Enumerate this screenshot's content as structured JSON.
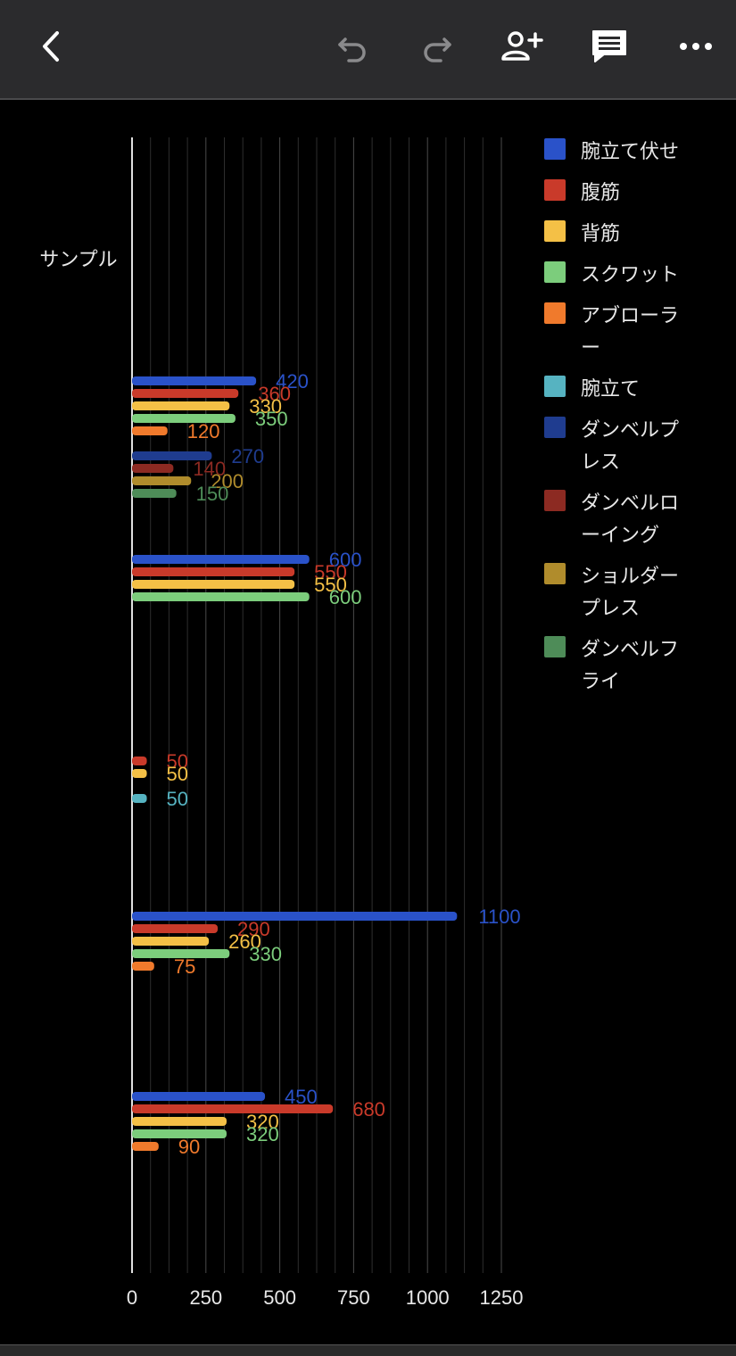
{
  "toolbar": {
    "icons": [
      "back-icon",
      "undo-icon",
      "redo-icon",
      "add-person-icon",
      "comment-icon",
      "more-icon"
    ]
  },
  "chart_data": {
    "type": "bar",
    "orientation": "horizontal",
    "category_label": "サンプル",
    "xlim": [
      0,
      1250
    ],
    "x_ticks": [
      "0",
      "250",
      "500",
      "750",
      "1000",
      "1250"
    ],
    "grid": true,
    "legend_position": "right",
    "series": [
      {
        "name": "腕立て伏せ",
        "color": "#2a52c9"
      },
      {
        "name": "腹筋",
        "color": "#c93a2a"
      },
      {
        "name": "背筋",
        "color": "#f4c046"
      },
      {
        "name": "スクワット",
        "color": "#7ccd7c"
      },
      {
        "name": "アブローラー",
        "color": "#f07a2c"
      },
      {
        "name": "腕立て",
        "color": "#56b3c1"
      },
      {
        "name": "ダンベルプレス",
        "color": "#1f3c8f"
      },
      {
        "name": "ダンベルローイング",
        "color": "#8c2a22"
      },
      {
        "name": "ショルダープレス",
        "color": "#b08c2c"
      },
      {
        "name": "ダンベルフライ",
        "color": "#4e8c58"
      }
    ],
    "groups": [
      {
        "bars": [
          {
            "series": 0,
            "value": 420
          },
          {
            "series": 1,
            "value": 360
          },
          {
            "series": 2,
            "value": 330
          },
          {
            "series": 3,
            "value": 350
          },
          {
            "series": 4,
            "value": 120
          },
          {
            "series": 6,
            "value": 270
          },
          {
            "series": 7,
            "value": 140
          },
          {
            "series": 8,
            "value": 200
          },
          {
            "series": 9,
            "value": 150
          }
        ]
      },
      {
        "bars": [
          {
            "series": 0,
            "value": 600
          },
          {
            "series": 1,
            "value": 550
          },
          {
            "series": 2,
            "value": 550
          },
          {
            "series": 3,
            "value": 600
          }
        ]
      },
      {
        "bars": [
          {
            "series": 1,
            "value": 50
          },
          {
            "series": 2,
            "value": 50
          },
          {
            "series": 5,
            "value": 50
          }
        ]
      },
      {
        "bars": [
          {
            "series": 0,
            "value": 1100
          },
          {
            "series": 1,
            "value": 290
          },
          {
            "series": 2,
            "value": 260
          },
          {
            "series": 3,
            "value": 330
          },
          {
            "series": 4,
            "value": 75
          }
        ]
      },
      {
        "bars": [
          {
            "series": 0,
            "value": 450
          },
          {
            "series": 1,
            "value": 680
          },
          {
            "series": 2,
            "value": 320
          },
          {
            "series": 3,
            "value": 320
          },
          {
            "series": 4,
            "value": 90
          }
        ]
      }
    ]
  }
}
